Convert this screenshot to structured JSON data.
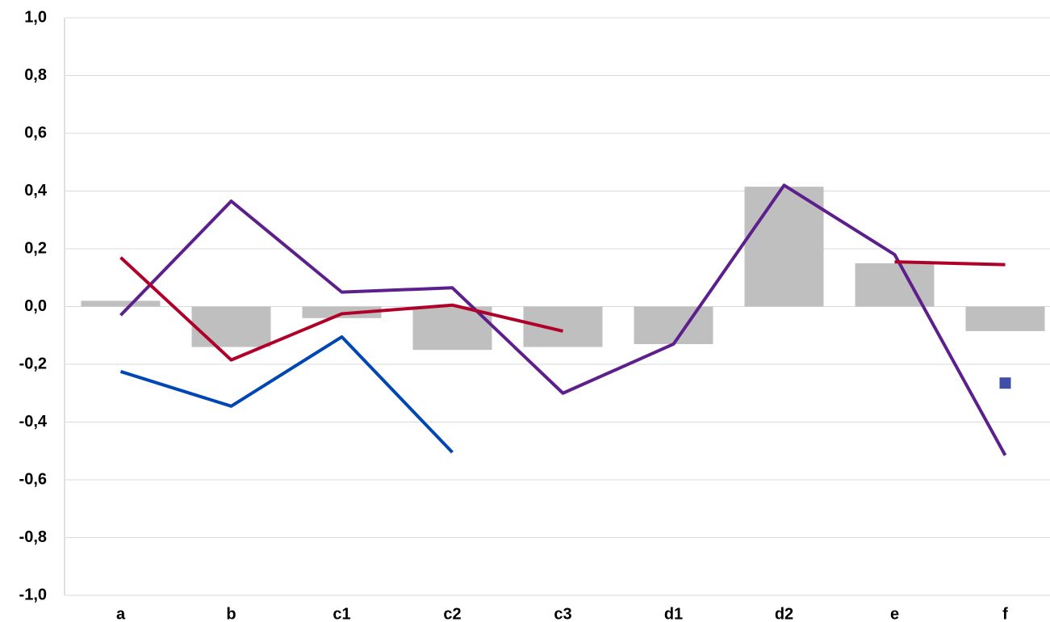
{
  "chart_data": {
    "type": "bar-line",
    "categories": [
      "a",
      "b",
      "c1",
      "c2",
      "c3",
      "d1",
      "d2",
      "e",
      "f"
    ],
    "ylim": [
      -1.0,
      1.0
    ],
    "yticks": [
      {
        "value": -1.0,
        "label": "-1,0"
      },
      {
        "value": -0.8,
        "label": "-0,8"
      },
      {
        "value": -0.6,
        "label": "-0,6"
      },
      {
        "value": -0.4,
        "label": "-0,4"
      },
      {
        "value": -0.2,
        "label": "-0,2"
      },
      {
        "value": 0.0,
        "label": "0,0"
      },
      {
        "value": 0.2,
        "label": "0,2"
      },
      {
        "value": 0.4,
        "label": "0,4"
      },
      {
        "value": 0.6,
        "label": "0,6"
      },
      {
        "value": 0.8,
        "label": "0,8"
      },
      {
        "value": 1.0,
        "label": "1,0"
      }
    ],
    "grid": true,
    "series": [
      {
        "kind": "bar",
        "color": "#bfbfbf",
        "values": [
          0.02,
          -0.14,
          -0.04,
          -0.15,
          -0.14,
          -0.13,
          0.415,
          0.15,
          -0.085
        ]
      },
      {
        "kind": "line",
        "color": "#5c1f8c",
        "values": [
          -0.03,
          0.365,
          0.05,
          0.065,
          -0.3,
          -0.13,
          0.42,
          0.18,
          -0.515
        ]
      },
      {
        "kind": "line",
        "color": "#b0002a",
        "values": [
          0.17,
          -0.185,
          -0.025,
          0.005,
          -0.085,
          null,
          null,
          0.155,
          0.145
        ]
      },
      {
        "kind": "line",
        "color": "#0047b3",
        "values": [
          -0.225,
          -0.345,
          -0.105,
          -0.505,
          null,
          null,
          null,
          null,
          null
        ]
      },
      {
        "kind": "marker",
        "color": "#3f4fa8",
        "values": [
          null,
          null,
          null,
          null,
          null,
          null,
          null,
          null,
          -0.265
        ]
      }
    ]
  }
}
